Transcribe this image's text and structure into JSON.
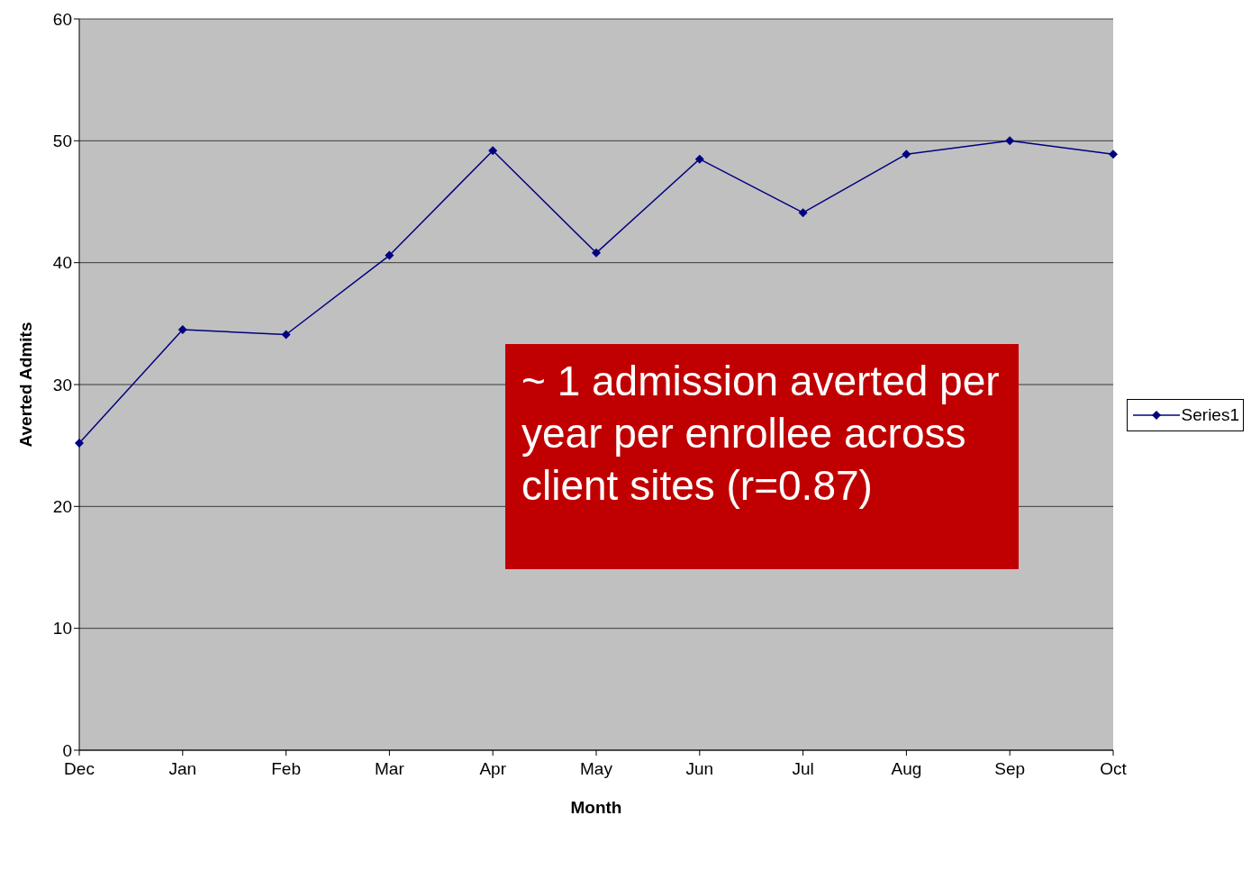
{
  "chart_data": {
    "type": "line",
    "xlabel": "Month",
    "ylabel": "Averted Admits",
    "categories": [
      "Dec",
      "Jan",
      "Feb",
      "Mar",
      "Apr",
      "May",
      "Jun",
      "Jul",
      "Aug",
      "Sep",
      "Oct"
    ],
    "series": [
      {
        "name": "Series1",
        "color": "#000080",
        "values": [
          25.2,
          34.5,
          34.1,
          40.6,
          49.2,
          40.8,
          48.5,
          44.1,
          48.9,
          50.0,
          48.9
        ]
      }
    ],
    "ylim": [
      0,
      60
    ],
    "yticks": [
      0,
      10,
      20,
      30,
      40,
      50,
      60
    ],
    "grid": "y",
    "legend": "right",
    "marker": "diamond",
    "line_style": "solid",
    "annotations": [
      "~ 1 admission averted per year per enrollee across client sites (r=0.87)"
    ]
  }
}
